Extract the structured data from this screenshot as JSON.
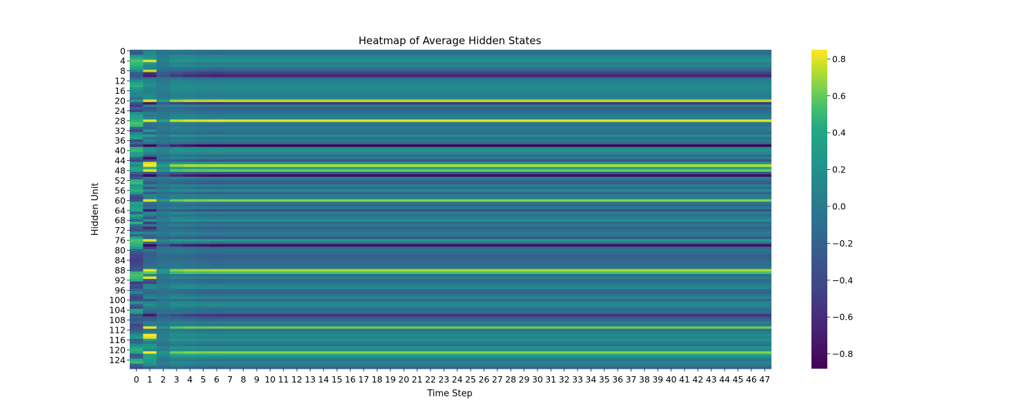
{
  "chart_data": {
    "type": "heatmap",
    "title": "Heatmap of Average Hidden States",
    "xlabel": "Time Step",
    "ylabel": "Hidden Unit",
    "n_rows": 128,
    "n_cols": 48,
    "x_ticks": [
      0,
      1,
      2,
      3,
      4,
      5,
      6,
      7,
      8,
      9,
      10,
      11,
      12,
      13,
      14,
      15,
      16,
      17,
      18,
      19,
      20,
      21,
      22,
      23,
      24,
      25,
      26,
      27,
      28,
      29,
      30,
      31,
      32,
      33,
      34,
      35,
      36,
      37,
      38,
      39,
      40,
      41,
      42,
      43,
      44,
      45,
      46,
      47
    ],
    "y_ticks": [
      0,
      4,
      8,
      12,
      16,
      20,
      24,
      28,
      32,
      36,
      40,
      44,
      48,
      52,
      56,
      60,
      64,
      68,
      72,
      76,
      80,
      84,
      88,
      92,
      96,
      100,
      104,
      108,
      112,
      116,
      120,
      124
    ],
    "colormap": "viridis",
    "vmin": -0.88,
    "vmax": 0.85,
    "colorbar_ticks": [
      0.8,
      0.6,
      0.4,
      0.2,
      0.0,
      -0.2,
      -0.4,
      -0.6,
      -0.8
    ],
    "colorbar_tick_labels": [
      "0.8",
      "0.6",
      "0.4",
      "0.2",
      "0.0",
      "−0.2",
      "−0.4",
      "−0.6",
      "−0.8"
    ],
    "steady_state_row_values": [
      -0.05,
      -0.15,
      0.1,
      0.15,
      0.2,
      0.05,
      0.1,
      -0.1,
      -0.25,
      -0.5,
      -0.65,
      -0.1,
      0.05,
      0.1,
      0.15,
      0.15,
      0.1,
      0.05,
      0.0,
      0.1,
      0.75,
      -0.55,
      0.05,
      -0.2,
      -0.15,
      -0.05,
      0.05,
      0.1,
      0.8,
      0.0,
      -0.1,
      0.05,
      -0.05,
      -0.15,
      0.2,
      -0.1,
      0.0,
      -0.15,
      -0.87,
      0.15,
      0.25,
      0.15,
      -0.1,
      0.05,
      -0.3,
      0.3,
      0.75,
      0.35,
      0.6,
      -0.3,
      -0.8,
      0.05,
      -0.15,
      -0.25,
      0.05,
      -0.1,
      0.15,
      -0.2,
      0.05,
      0.0,
      0.65,
      -0.05,
      -0.15,
      0.0,
      -0.35,
      0.1,
      -0.1,
      0.05,
      0.2,
      -0.15,
      0.0,
      -0.2,
      -0.1,
      0.05,
      -0.05,
      -0.3,
      0.3,
      -0.05,
      -0.8,
      -0.15,
      -0.05,
      -0.1,
      -0.2,
      -0.2,
      -0.15,
      -0.1,
      -0.1,
      -0.05,
      0.7,
      0.55,
      -0.1,
      0.05,
      -0.15,
      -0.1,
      0.1,
      0.15,
      -0.15,
      -0.2,
      -0.05,
      0.1,
      -0.15,
      0.1,
      0.15,
      0.0,
      -0.15,
      -0.1,
      -0.55,
      -0.3,
      -0.15,
      0.05,
      -0.05,
      0.6,
      -0.1,
      0.05,
      0.15,
      0.1,
      0.2,
      0.05,
      -0.1,
      0.25,
      0.1,
      0.65,
      0.4,
      0.15,
      -0.05,
      0.1,
      0.05,
      -0.2
    ],
    "time_step_0_values": [
      -0.2,
      -0.3,
      0.25,
      0.45,
      0.55,
      0.5,
      0.45,
      0.35,
      0.1,
      -0.25,
      -0.3,
      -0.1,
      0.2,
      0.35,
      0.45,
      0.3,
      0.2,
      0.1,
      0.15,
      -0.1,
      0.3,
      -0.3,
      -0.5,
      -0.2,
      -0.45,
      0.2,
      0.35,
      0.4,
      0.45,
      0.55,
      0.5,
      -0.2,
      -0.45,
      0.1,
      0.3,
      0.4,
      -0.4,
      -0.15,
      -0.5,
      0.45,
      0.5,
      0.35,
      0.3,
      -0.2,
      -0.45,
      0.3,
      0.15,
      0.4,
      0.35,
      -0.2,
      -0.45,
      -0.3,
      0.45,
      0.5,
      0.3,
      0.35,
      0.45,
      0.3,
      -0.25,
      -0.45,
      -0.3,
      0.35,
      0.3,
      0.35,
      0.4,
      -0.25,
      0.4,
      0.15,
      -0.2,
      0.45,
      -0.1,
      -0.3,
      -0.35,
      0.2,
      -0.15,
      0.4,
      0.55,
      0.5,
      0.45,
      0.3,
      -0.2,
      -0.35,
      -0.4,
      -0.45,
      -0.5,
      -0.45,
      -0.4,
      -0.3,
      -0.25,
      0.5,
      0.55,
      0.5,
      0.45,
      -0.5,
      -0.35,
      -0.4,
      -0.1,
      0.1,
      -0.3,
      -0.45,
      -0.35,
      0.25,
      -0.2,
      -0.4,
      0.35,
      0.3,
      -0.35,
      -0.2,
      -0.3,
      -0.15,
      -0.45,
      -0.35,
      -0.25,
      -0.1,
      0.2,
      0.3,
      -0.2,
      -0.15,
      0.15,
      0.35,
      0.45,
      0.4,
      -0.3,
      -0.2,
      0.45,
      0.5,
      -0.15,
      -0.35
    ],
    "time_step_1_values": [
      0.05,
      0.15,
      0.2,
      0.25,
      0.8,
      0.3,
      0.15,
      0.1,
      0.75,
      -0.6,
      -0.7,
      -0.05,
      0.1,
      0.15,
      0.2,
      0.1,
      0.05,
      0.1,
      0.15,
      0.2,
      0.8,
      -0.75,
      0.1,
      -0.3,
      -0.2,
      0.05,
      0.0,
      0.15,
      0.8,
      -0.05,
      -0.1,
      -0.15,
      0.3,
      -0.2,
      0.3,
      -0.05,
      0.15,
      -0.1,
      -0.85,
      0.2,
      0.25,
      0.1,
      -0.15,
      -0.8,
      -0.35,
      0.8,
      0.85,
      0.45,
      0.8,
      -0.3,
      -0.85,
      0.05,
      -0.1,
      -0.3,
      0.1,
      -0.3,
      0.2,
      -0.25,
      0.1,
      0.05,
      0.8,
      -0.1,
      -0.2,
      -0.1,
      -0.7,
      0.15,
      0.0,
      -0.3,
      0.3,
      -0.5,
      0.0,
      -0.6,
      -0.3,
      0.1,
      -0.15,
      -0.2,
      0.8,
      -0.1,
      -0.85,
      -0.5,
      0.0,
      -0.2,
      -0.25,
      -0.2,
      -0.15,
      -0.15,
      -0.1,
      -0.05,
      0.8,
      0.6,
      0.1,
      0.8,
      -0.3,
      -0.45,
      0.1,
      0.15,
      -0.1,
      -0.15,
      0.0,
      0.1,
      -0.3,
      0.1,
      0.2,
      0.0,
      -0.1,
      -0.2,
      -0.75,
      -0.3,
      -0.2,
      0.05,
      0.0,
      0.8,
      -0.1,
      0.05,
      0.85,
      0.8,
      0.3,
      -0.05,
      0.25,
      0.3,
      0.1,
      0.85,
      0.4,
      0.35,
      0.3,
      0.3,
      0.2,
      -0.2
    ]
  }
}
